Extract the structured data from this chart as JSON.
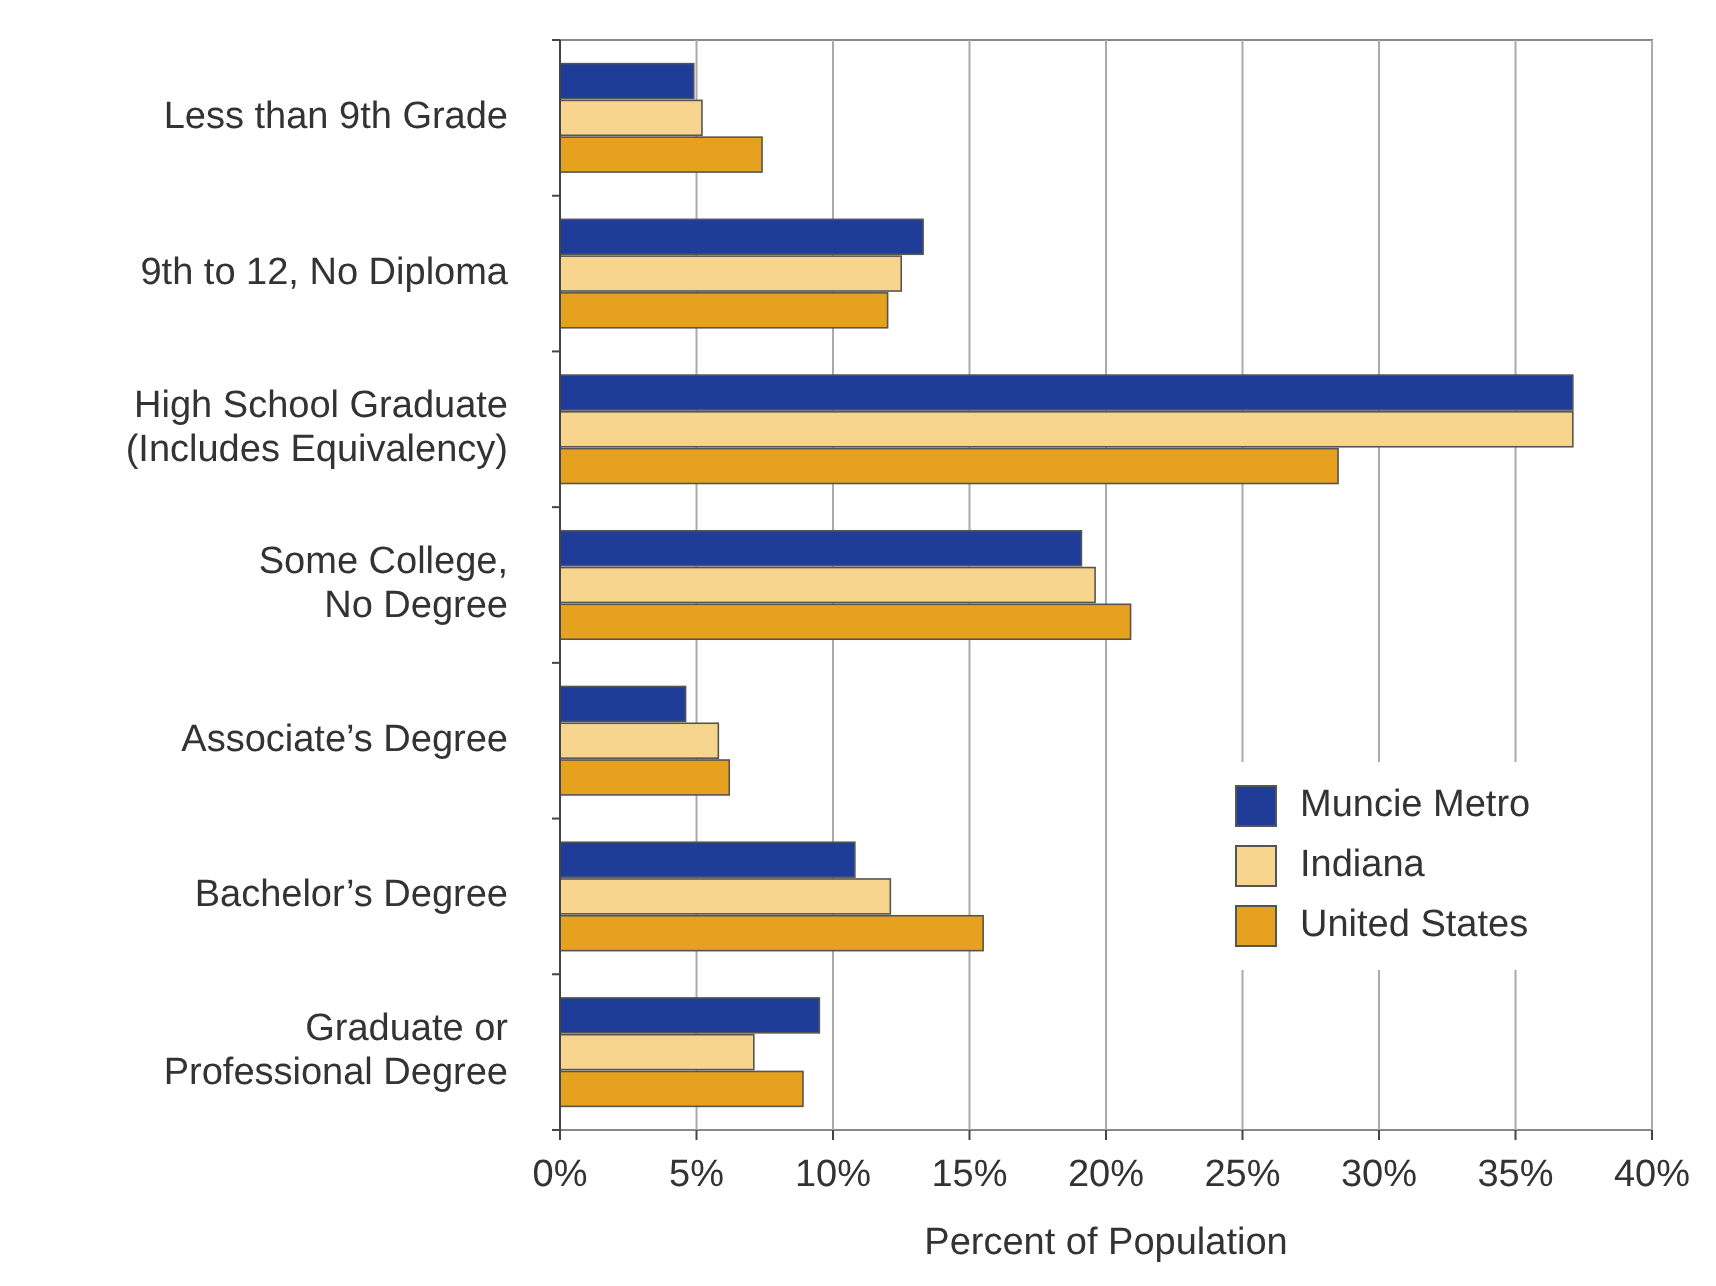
{
  "chart_data": {
    "type": "bar",
    "orientation": "horizontal",
    "xlabel": "Percent of Population",
    "categories": [
      "Less than 9th Grade",
      "9th to 12, No Diploma",
      "High School Graduate\n(Includes Equivalency)",
      "Some College,\nNo Degree",
      "Associate’s Degree",
      "Bachelor’s Degree",
      "Graduate or\nProfessional Degree"
    ],
    "series": [
      {
        "name": "Muncie Metro",
        "color": "#1f3c99",
        "values": [
          4.9,
          13.3,
          37.1,
          19.1,
          4.6,
          10.8,
          9.5
        ]
      },
      {
        "name": "Indiana",
        "color": "#f7d58f",
        "values": [
          5.2,
          12.5,
          37.1,
          19.6,
          5.8,
          12.1,
          7.1
        ]
      },
      {
        "name": "United States",
        "color": "#e6a21e",
        "values": [
          7.4,
          12.0,
          28.5,
          20.9,
          6.2,
          15.5,
          8.9
        ]
      }
    ],
    "xlim": [
      0,
      40
    ],
    "xticks": [
      {
        "value": 0,
        "label": "0%"
      },
      {
        "value": 5,
        "label": "5%"
      },
      {
        "value": 10,
        "label": "10%"
      },
      {
        "value": 15,
        "label": "15%"
      },
      {
        "value": 20,
        "label": "20%"
      },
      {
        "value": 25,
        "label": "25%"
      },
      {
        "value": 30,
        "label": "30%"
      },
      {
        "value": 35,
        "label": "35%"
      },
      {
        "value": 40,
        "label": "40%"
      }
    ],
    "grid": "x",
    "legend": "bottom right"
  }
}
